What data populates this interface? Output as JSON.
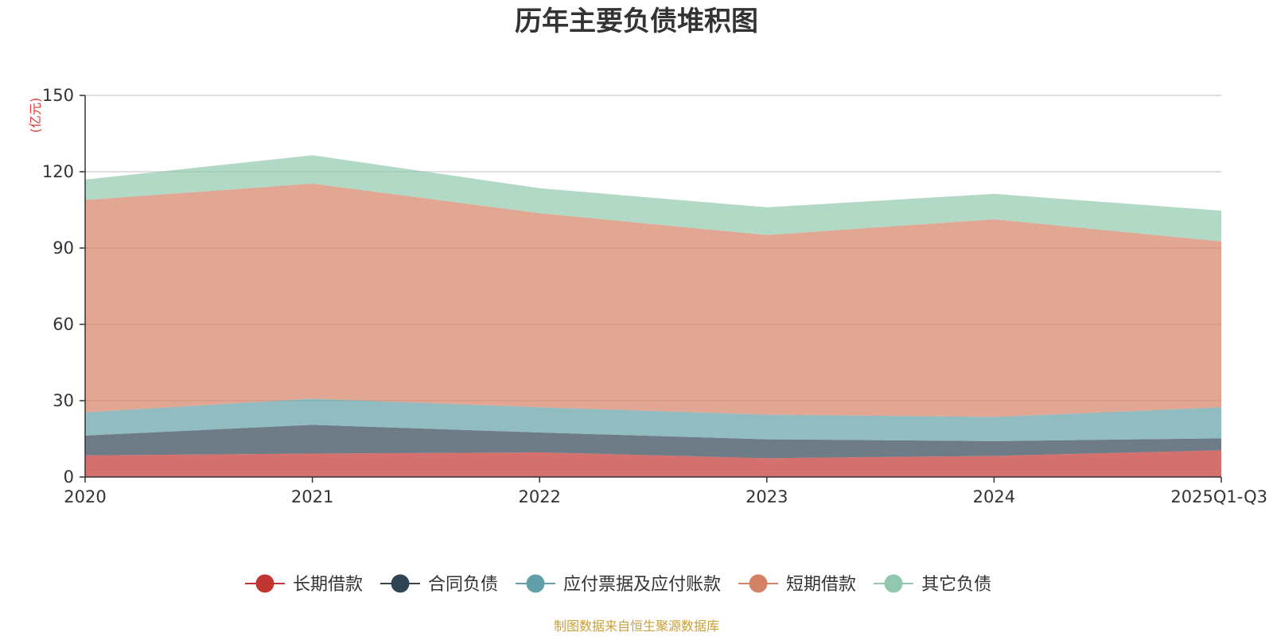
{
  "chart_data": {
    "type": "area",
    "stacked": true,
    "title": "历年主要负债堆积图",
    "unit_label": "(亿元)",
    "categories": [
      "2020",
      "2021",
      "2022",
      "2023",
      "2024",
      "2025Q1-Q3"
    ],
    "ylim": [
      0,
      150
    ],
    "yticks": [
      0,
      30,
      60,
      90,
      120,
      150
    ],
    "grid": true,
    "legend_position": "bottom",
    "series": [
      {
        "name": "长期借款",
        "color": "#c23531",
        "values": [
          8.5,
          9.2,
          9.7,
          7.4,
          8.3,
          10.5
        ]
      },
      {
        "name": "合同负债",
        "color": "#2f4554",
        "values": [
          7.8,
          11.3,
          7.8,
          7.4,
          5.8,
          4.7
        ]
      },
      {
        "name": "应付票据及应付账款",
        "color": "#61a0a8",
        "values": [
          9.1,
          10.3,
          9.9,
          9.7,
          9.5,
          12.2
        ]
      },
      {
        "name": "短期借款",
        "color": "#d48265",
        "values": [
          83.5,
          84.5,
          76.3,
          70.6,
          77.7,
          65.2
        ]
      },
      {
        "name": "其它负债",
        "color": "#91c7ae",
        "values": [
          8.0,
          11.2,
          9.8,
          10.9,
          10.0,
          12.1
        ]
      }
    ],
    "source_note": "制图数据来自恒生聚源数据库"
  }
}
